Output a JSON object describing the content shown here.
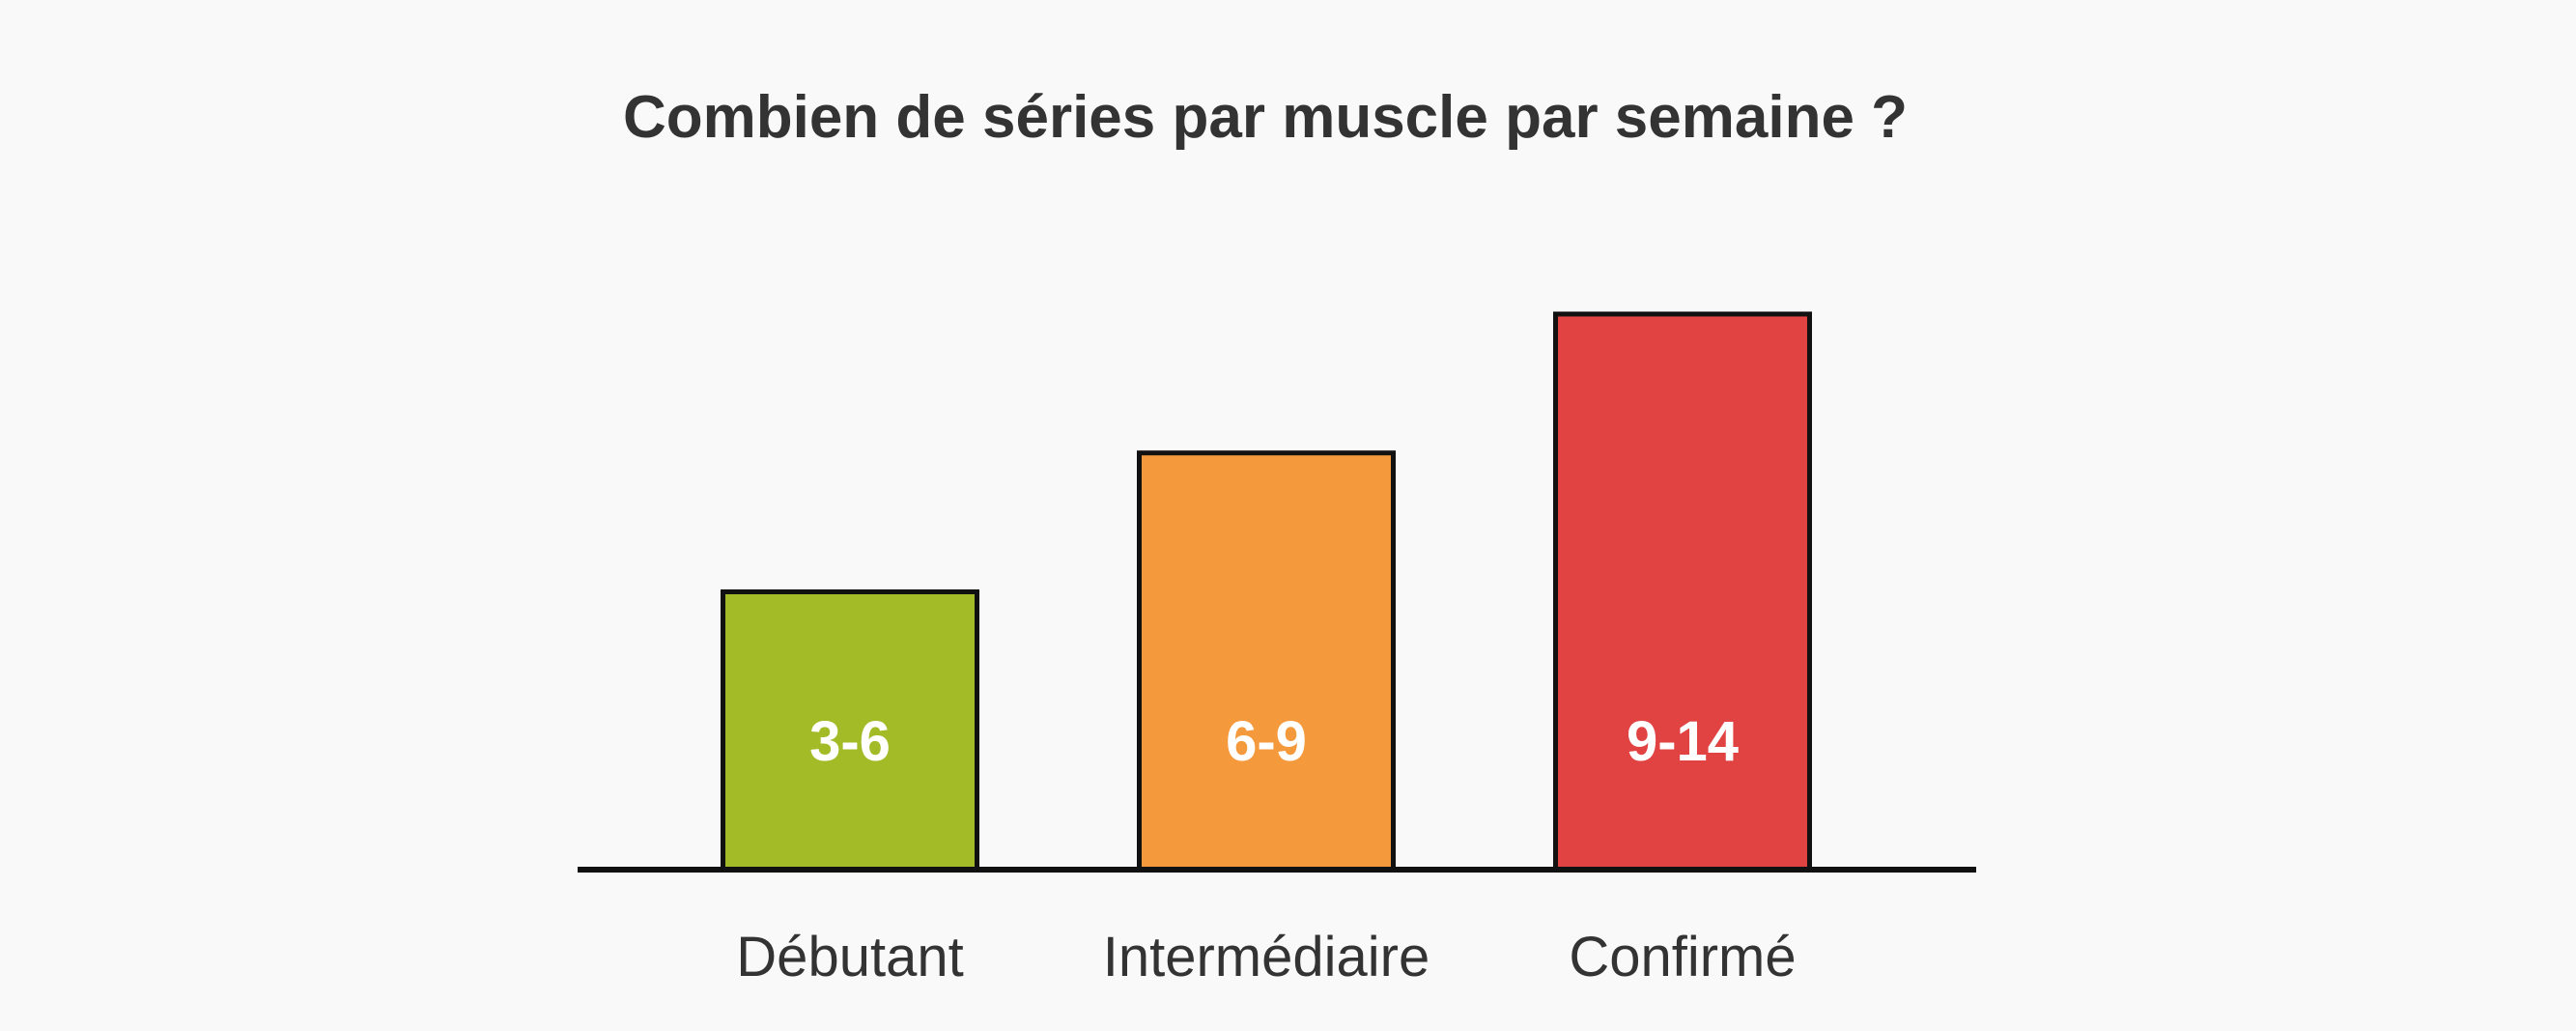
{
  "chart_data": {
    "type": "bar",
    "title": "Combien de séries par muscle par semaine ?",
    "xlabel": "",
    "ylabel": "",
    "grid": false,
    "legend": "none",
    "categories": [
      "Débutant",
      "Intermédiaire",
      "Confirmé"
    ],
    "values": [
      1,
      1.5,
      2
    ],
    "value_labels": [
      "3-6",
      "6-9",
      "9-14"
    ],
    "ylim": [
      0,
      2
    ],
    "colors": [
      "#a3bb27",
      "#f49a3c",
      "#e04341"
    ],
    "outline_color": "#111111",
    "axis_color": "#111111"
  }
}
